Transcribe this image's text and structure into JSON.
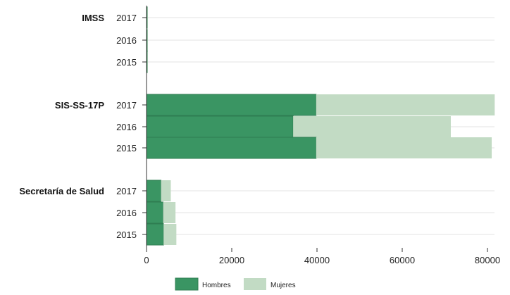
{
  "chart_data": {
    "type": "bar",
    "orientation": "horizontal",
    "stacked": true,
    "xlim": [
      0,
      80000
    ],
    "x_ticks": [
      "0",
      "20000",
      "40000",
      "60000",
      "80000"
    ],
    "grid": true,
    "legend_position": "bottom",
    "groups": [
      {
        "name": "IMSS",
        "rows": [
          {
            "year": "2017",
            "Hombres": 200,
            "Mujeres": 100
          },
          {
            "year": "2016",
            "Hombres": 200,
            "Mujeres": 100
          },
          {
            "year": "2015",
            "Hombres": 200,
            "Mujeres": 100
          }
        ]
      },
      {
        "name": "SIS-SS-17P",
        "rows": [
          {
            "year": "2017",
            "Hombres": 39800,
            "Mujeres": 41900
          },
          {
            "year": "2016",
            "Hombres": 34400,
            "Mujeres": 37000
          },
          {
            "year": "2015",
            "Hombres": 39800,
            "Mujeres": 41200
          }
        ]
      },
      {
        "name": "Secretaría de Salud",
        "rows": [
          {
            "year": "2017",
            "Hombres": 3400,
            "Mujeres": 2300
          },
          {
            "year": "2016",
            "Hombres": 3900,
            "Mujeres": 2900
          },
          {
            "year": "2015",
            "Hombres": 4000,
            "Mujeres": 3000
          }
        ]
      }
    ],
    "series": [
      {
        "name": "Hombres",
        "color": "#3a9563"
      },
      {
        "name": "Mujeres",
        "color": "#c2dbc4"
      }
    ]
  }
}
